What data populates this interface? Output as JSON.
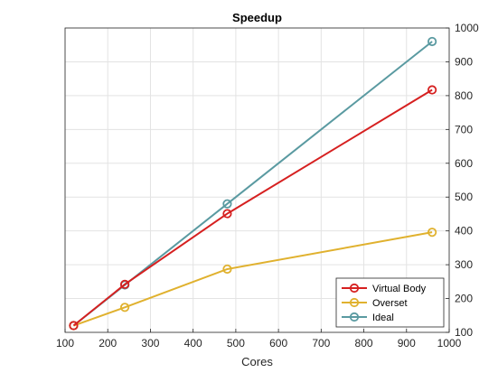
{
  "chart_data": {
    "type": "line",
    "title": "Speedup",
    "xlabel": "Cores",
    "ylabel": "",
    "xlim": [
      100,
      1000
    ],
    "ylim": [
      100,
      1000
    ],
    "xticks": [
      "100",
      "200",
      "300",
      "400",
      "500",
      "600",
      "700",
      "800",
      "900",
      "1000"
    ],
    "yticks": [
      "100",
      "200",
      "300",
      "400",
      "500",
      "600",
      "700",
      "800",
      "900",
      "1000"
    ],
    "y_axis_side": "right",
    "grid": true,
    "legend_position": "bottom-right",
    "series": [
      {
        "name": "Virtual Body",
        "color": "#d62020",
        "x": [
          120,
          240,
          480,
          960
        ],
        "y": [
          120,
          242,
          451,
          817
        ]
      },
      {
        "name": "Overset",
        "color": "#e0b12e",
        "x": [
          120,
          240,
          480,
          960
        ],
        "y": [
          120,
          174,
          287,
          396
        ]
      },
      {
        "name": "Ideal",
        "color": "#5a9aa1",
        "x": [
          120,
          240,
          480,
          960
        ],
        "y": [
          120,
          240,
          480,
          960
        ]
      }
    ]
  }
}
